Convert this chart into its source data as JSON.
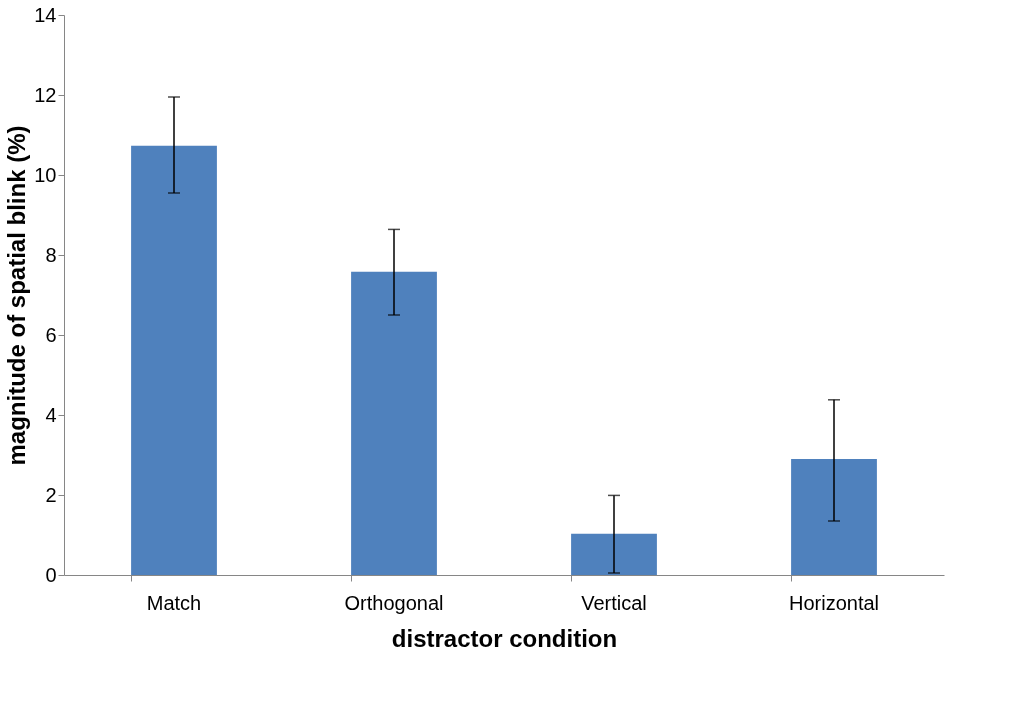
{
  "chart_data": {
    "type": "bar",
    "xlabel": "distractor condition",
    "ylabel": "magnitude of spatial  blink (%)",
    "categories": [
      "Match",
      "Orthogonal",
      "Vertical",
      "Horizontal"
    ],
    "values": [
      10.73,
      7.58,
      1.03,
      2.9
    ],
    "errors": [
      [
        9.55,
        11.95
      ],
      [
        6.5,
        8.64
      ],
      [
        0.05,
        1.99
      ],
      [
        1.35,
        4.38
      ]
    ],
    "color": "#4f81bd",
    "ylim": [
      0,
      14
    ],
    "yticks": [
      0,
      2,
      4,
      6,
      8,
      10,
      12,
      14
    ],
    "grid": false
  }
}
